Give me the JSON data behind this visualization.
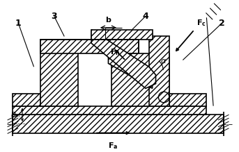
{
  "bg_color": "#ffffff",
  "line_color": "#000000",
  "fig_width": 3.43,
  "fig_height": 2.19,
  "dpi": 100
}
